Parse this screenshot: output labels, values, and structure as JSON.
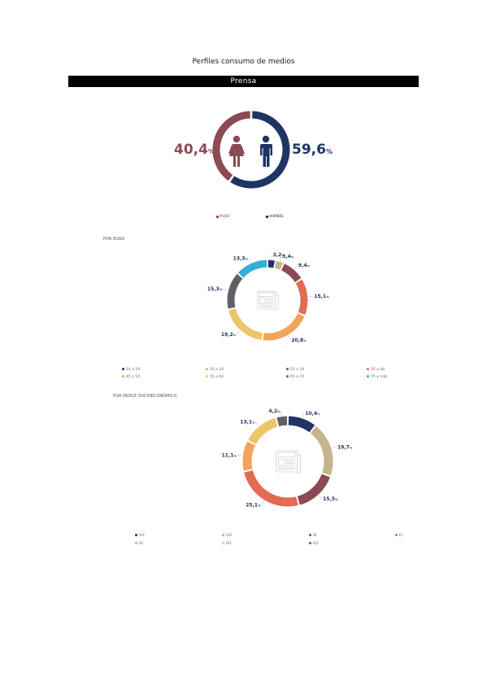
{
  "page_title": "Perfiles consumo de medios",
  "section_title": "Prensa",
  "colors": {
    "navy": "#1f3463",
    "maroon": "#8b4a55",
    "tan": "#c5b58e",
    "coral": "#e36b52",
    "orange": "#f2a45a",
    "yellow": "#edc66a",
    "gray": "#606066",
    "cyan": "#35aed6",
    "lightgray": "#aaaaaa",
    "track": "#e9e9e9"
  },
  "icons": [
    "woman-icon",
    "man-icon",
    "newspaper-icon"
  ],
  "chart_data": [
    {
      "type": "pie",
      "subtype": "gender-donut",
      "categories": [
        "MUJER",
        "HOMBRE"
      ],
      "values": [
        40.4,
        59.6
      ],
      "labels": [
        "40,4",
        "59,6"
      ],
      "unit": "%",
      "colors": [
        "#8b4a55",
        "#1f3463"
      ],
      "legend": [
        "MUJER",
        "HOMBRE"
      ]
    },
    {
      "type": "pie",
      "subtype": "age-donut",
      "section_label": "POR EDAD",
      "categories": [
        "14 a 19",
        "20 a 24",
        "25 a 34",
        "35 a 44",
        "45 a 54",
        "55 a 64",
        "65 a 74",
        "75 y más"
      ],
      "values": [
        3.2,
        3.4,
        9.4,
        15.1,
        20.8,
        19.2,
        15.3,
        13.3
      ],
      "labels": [
        "3,2",
        "3,4",
        "9,4",
        "15,1",
        "20,8",
        "19,2",
        "15,3",
        "13,3"
      ],
      "unit": "%",
      "colors": [
        "#1f3463",
        "#c5b58e",
        "#8b4a55",
        "#e36b52",
        "#f2a45a",
        "#edc66a",
        "#606066",
        "#35aed6"
      ]
    },
    {
      "type": "pie",
      "subtype": "socioeconomic-donut",
      "section_label": "POR ÍNDICE SOCIOECONÓMICO",
      "categories": [
        "IA1",
        "IA2",
        "IB",
        "IC",
        "ID",
        "IE1",
        "IE2"
      ],
      "values": [
        10.4,
        19.7,
        15.5,
        25.1,
        11.1,
        13.1,
        4.2
      ],
      "labels": [
        "10,4",
        "19,7",
        "15,5",
        "25,1",
        "11,1",
        "13,1",
        "4,2"
      ],
      "unit": "%",
      "colors": [
        "#1f3463",
        "#c5b58e",
        "#8b4a55",
        "#e36b52",
        "#f2a45a",
        "#edc66a",
        "#606066"
      ]
    }
  ]
}
